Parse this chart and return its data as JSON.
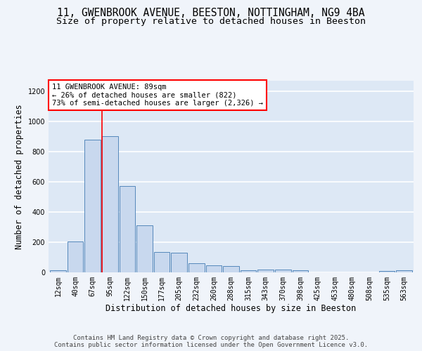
{
  "title": "11, GWENBROOK AVENUE, BEESTON, NOTTINGHAM, NG9 4BA",
  "subtitle": "Size of property relative to detached houses in Beeston",
  "xlabel": "Distribution of detached houses by size in Beeston",
  "ylabel": "Number of detached properties",
  "bar_color": "#c8d8ee",
  "bar_edge_color": "#5588bb",
  "background_color": "#dde8f5",
  "grid_color": "#ffffff",
  "fig_background": "#f0f4fa",
  "categories": [
    "12sqm",
    "40sqm",
    "67sqm",
    "95sqm",
    "122sqm",
    "150sqm",
    "177sqm",
    "205sqm",
    "232sqm",
    "260sqm",
    "288sqm",
    "315sqm",
    "343sqm",
    "370sqm",
    "398sqm",
    "425sqm",
    "453sqm",
    "480sqm",
    "508sqm",
    "535sqm",
    "563sqm"
  ],
  "values": [
    10,
    205,
    880,
    900,
    570,
    310,
    135,
    130,
    60,
    45,
    40,
    10,
    15,
    15,
    13,
    0,
    0,
    0,
    0,
    5,
    10
  ],
  "ylim": [
    0,
    1270
  ],
  "yticks": [
    0,
    200,
    400,
    600,
    800,
    1000,
    1200
  ],
  "red_line_x": 2.55,
  "annotation_text": "11 GWENBROOK AVENUE: 89sqm\n← 26% of detached houses are smaller (822)\n73% of semi-detached houses are larger (2,326) →",
  "footer_line1": "Contains HM Land Registry data © Crown copyright and database right 2025.",
  "footer_line2": "Contains public sector information licensed under the Open Government Licence v3.0.",
  "title_fontsize": 10.5,
  "subtitle_fontsize": 9.5,
  "ylabel_fontsize": 8.5,
  "xlabel_fontsize": 8.5,
  "tick_fontsize": 7,
  "annotation_fontsize": 7.5,
  "footer_fontsize": 6.5
}
